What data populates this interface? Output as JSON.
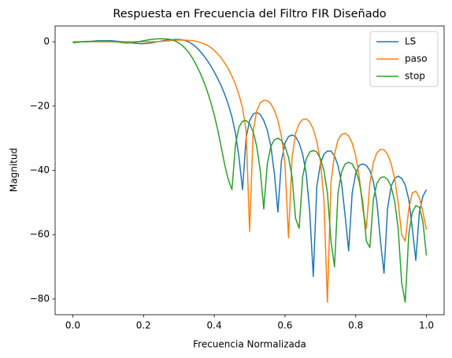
{
  "chart_data": {
    "type": "line",
    "title": "Respuesta en Frecuencia del Filtro FIR Diseñado",
    "xlabel": "Frecuencia Normalizada",
    "ylabel": "Magnitud",
    "x": [
      0,
      0.01,
      0.02,
      0.03,
      0.04,
      0.05,
      0.06,
      0.07,
      0.08,
      0.09,
      0.1,
      0.11,
      0.12,
      0.13,
      0.14,
      0.15,
      0.16,
      0.17,
      0.18,
      0.19,
      0.2,
      0.21,
      0.22,
      0.23,
      0.24,
      0.25,
      0.26,
      0.27,
      0.28,
      0.29,
      0.3,
      0.31,
      0.32,
      0.33,
      0.34,
      0.35,
      0.36,
      0.37,
      0.38,
      0.39,
      0.4,
      0.41,
      0.42,
      0.43,
      0.44,
      0.45,
      0.46,
      0.47,
      0.48,
      0.49,
      0.5,
      0.51,
      0.52,
      0.53,
      0.54,
      0.55,
      0.56,
      0.57,
      0.58,
      0.59,
      0.6,
      0.61,
      0.62,
      0.63,
      0.64,
      0.65,
      0.66,
      0.67,
      0.68,
      0.69,
      0.7,
      0.71,
      0.72,
      0.73,
      0.74,
      0.75,
      0.76,
      0.77,
      0.78,
      0.79,
      0.8,
      0.81,
      0.82,
      0.83,
      0.84,
      0.85,
      0.86,
      0.87,
      0.88,
      0.89,
      0.9,
      0.91,
      0.92,
      0.93,
      0.94,
      0.95,
      0.96,
      0.97,
      0.98,
      0.99,
      1
    ],
    "series": [
      {
        "name": "LS",
        "color": "#1f77b4",
        "values": [
          -0.3,
          -0.2,
          -0.1,
          0,
          0.1,
          0.1,
          0.2,
          0.3,
          0.3,
          0.3,
          0.3,
          0.3,
          0.2,
          0.1,
          0,
          -0.1,
          -0.3,
          -0.4,
          -0.5,
          -0.6,
          -0.6,
          -0.5,
          -0.4,
          -0.2,
          0,
          0.2,
          0.4,
          0.5,
          0.6,
          0.7,
          0.7,
          0.6,
          0.3,
          -0.2,
          -0.9,
          -1.8,
          -3,
          -4.3,
          -5.8,
          -7.5,
          -9.4,
          -11.5,
          -13.8,
          -16.5,
          -19.6,
          -23.4,
          -28.5,
          -36,
          -46,
          -30,
          -24.5,
          -22.5,
          -22,
          -22.6,
          -24.5,
          -27.5,
          -32.5,
          -41,
          -53,
          -37,
          -31.5,
          -29.5,
          -29,
          -29.5,
          -31.5,
          -35,
          -41,
          -53,
          -73,
          -45,
          -38,
          -35,
          -34,
          -34,
          -35.5,
          -38.5,
          -44,
          -54,
          -65,
          -47,
          -41,
          -38.5,
          -38,
          -38.5,
          -40,
          -43.5,
          -50,
          -62,
          -72,
          -52,
          -45,
          -42.5,
          -41.8,
          -42.5,
          -44.5,
          -49,
          -58,
          -68,
          -53,
          -48,
          -46
        ]
      },
      {
        "name": "paso",
        "color": "#ff7f0e",
        "values": [
          0,
          0,
          0,
          0,
          0,
          0,
          0,
          0,
          0,
          0,
          0,
          0,
          0,
          0,
          0,
          0,
          0,
          0,
          0,
          0,
          0,
          0,
          0,
          0,
          0,
          0.1,
          0.2,
          0.3,
          0.4,
          0.5,
          0.5,
          0.5,
          0.5,
          0.4,
          0.3,
          0.1,
          -0.2,
          -0.6,
          -1.1,
          -1.8,
          -2.7,
          -3.8,
          -5.1,
          -6.7,
          -8.5,
          -10.7,
          -13.3,
          -16.5,
          -20.7,
          -27.5,
          -59,
          -28,
          -21.5,
          -19,
          -18.2,
          -18.3,
          -19.3,
          -21.3,
          -24.5,
          -29.5,
          -38,
          -61,
          -36,
          -28.5,
          -25.5,
          -24.2,
          -24,
          -25,
          -27.2,
          -31,
          -37,
          -49,
          -81,
          -44,
          -35,
          -30.5,
          -28.8,
          -28.5,
          -29.3,
          -31.5,
          -35.5,
          -42,
          -52,
          -58,
          -44,
          -37.5,
          -34.5,
          -33.5,
          -33.6,
          -35,
          -37.8,
          -42.5,
          -50,
          -60,
          -62,
          -52,
          -47,
          -46.5,
          -48.5,
          -53,
          -58.5
        ]
      },
      {
        "name": "stop",
        "color": "#2ca02c",
        "values": [
          -0.3,
          -0.2,
          -0.1,
          0,
          0,
          0.1,
          0.1,
          0.2,
          0.2,
          0.2,
          0.2,
          0.1,
          0,
          -0.1,
          -0.3,
          -0.4,
          -0.4,
          -0.3,
          -0.1,
          0.1,
          0.3,
          0.5,
          0.7,
          0.8,
          0.9,
          0.9,
          0.9,
          0.8,
          0.6,
          0.2,
          -0.4,
          -1.2,
          -2.3,
          -3.7,
          -5.4,
          -7.4,
          -9.7,
          -12.3,
          -15.3,
          -18.8,
          -22.8,
          -27.5,
          -33,
          -38.5,
          -43,
          -46,
          -32,
          -26.5,
          -24.7,
          -24.5,
          -25.5,
          -28,
          -32.5,
          -40,
          -52,
          -38,
          -32.5,
          -30.5,
          -30,
          -30.7,
          -32.5,
          -36,
          -42,
          -55,
          -58,
          -42,
          -36.5,
          -34.3,
          -33.8,
          -34.3,
          -36.3,
          -40,
          -47,
          -62,
          -70,
          -47,
          -40.5,
          -38,
          -37.5,
          -38,
          -40,
          -43.5,
          -50,
          -62,
          -64,
          -49,
          -44,
          -42.3,
          -42,
          -42.8,
          -45,
          -49.5,
          -58,
          -75,
          -81,
          -60,
          -53,
          -51,
          -51.5,
          -56,
          -66.5
        ]
      }
    ],
    "xlim": [
      -0.05,
      1.05
    ],
    "ylim": [
      -84.9,
      4.9
    ],
    "xticks": [
      {
        "value": 0,
        "label": "0.0"
      },
      0.2,
      0.4,
      0.6,
      0.8,
      {
        "value": 1,
        "label": "1.0"
      }
    ],
    "yticks": [
      {
        "value": -80,
        "label": "−80"
      },
      {
        "value": -60,
        "label": "−60"
      },
      {
        "value": -40,
        "label": "−40"
      },
      {
        "value": -20,
        "label": "−20"
      },
      0
    ],
    "legend": "upper right"
  }
}
